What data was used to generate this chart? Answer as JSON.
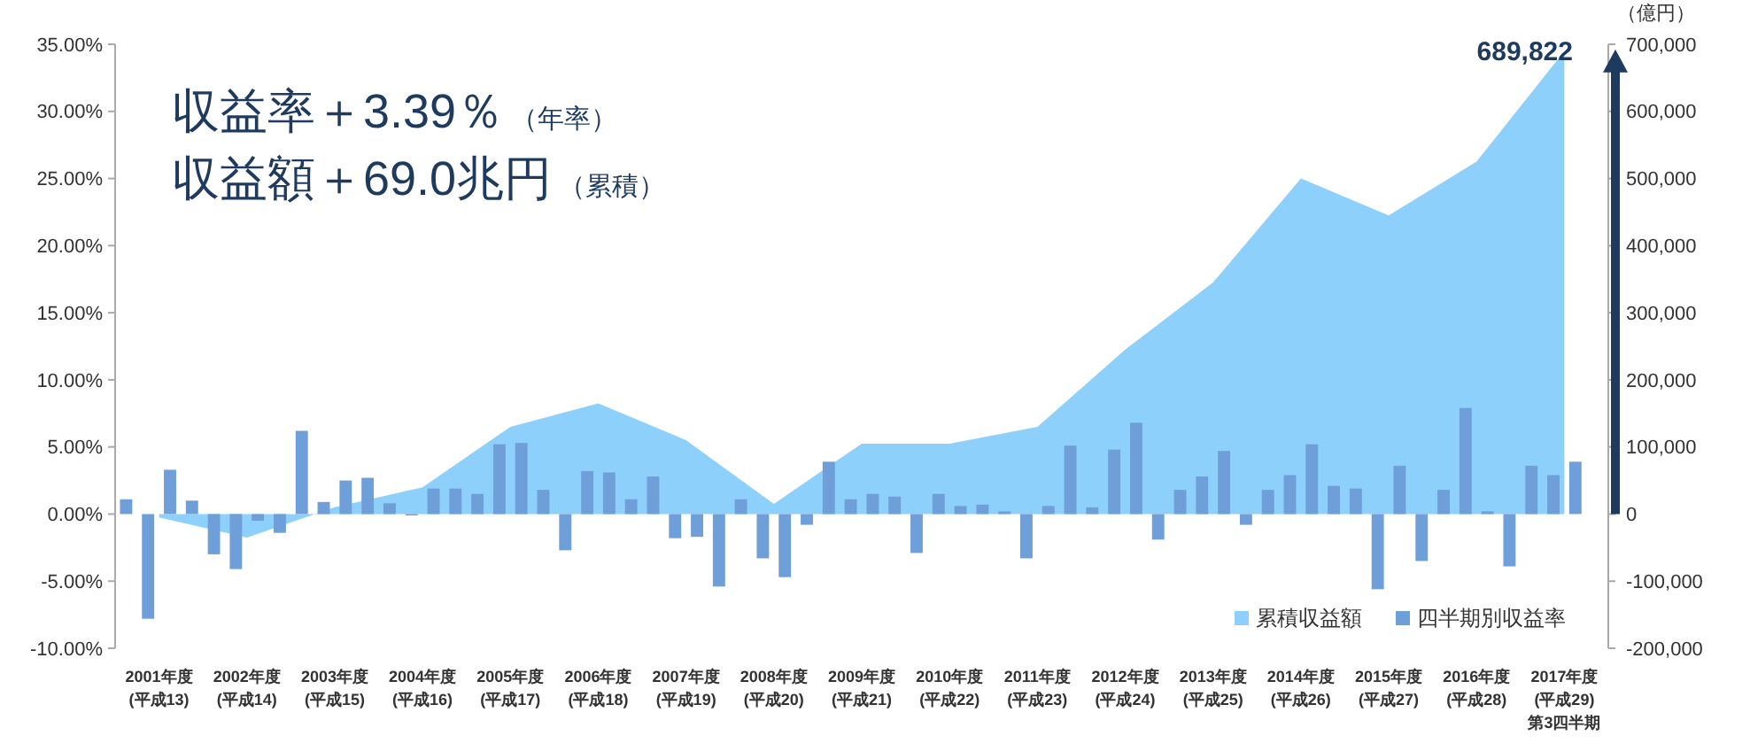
{
  "chart_data": {
    "type": "bar",
    "categories": [
      "2001年度\n(平成13)",
      "2002年度\n(平成14)",
      "2003年度\n(平成15)",
      "2004年度\n(平成16)",
      "2005年度\n(平成17)",
      "2006年度\n(平成18)",
      "2007年度\n(平成19)",
      "2008年度\n(平成20)",
      "2009年度\n(平成21)",
      "2010年度\n(平成22)",
      "2011年度\n(平成23)",
      "2012年度\n(平成24)",
      "2013年度\n(平成25)",
      "2014年度\n(平成26)",
      "2015年度\n(平成27)",
      "2016年度\n(平成28)",
      "2017年度\n(平成29)\n第3四半期"
    ],
    "series": [
      {
        "name": "累積収益額",
        "type": "area",
        "axis": "y2",
        "color": "#8dd0fb",
        "values": [
          -5000,
          -35000,
          10000,
          40000,
          130000,
          165000,
          110000,
          15000,
          105000,
          105000,
          130000,
          245000,
          345000,
          500000,
          445000,
          525000,
          689822
        ]
      },
      {
        "name": "四半期別収益率",
        "color": "#6f9fd9",
        "values": [
          1.1,
          -3.0,
          6.2,
          0.8,
          1.5,
          -2.7,
          2.8,
          1.1,
          3.9,
          -2.9,
          0.2,
          0.5,
          1.8,
          1.8,
          1.9,
          1.8,
          3.6
        ]
      },
      {
        "color": "#6f9fd9",
        "values": [
          -7.8,
          -4.1,
          0.9,
          -0.1,
          5.2,
          3.2,
          -1.8,
          -3.3,
          1.1,
          1.5,
          -3.3,
          4.8,
          2.8,
          2.9,
          -5.6,
          7.9,
          2.9
        ]
      },
      {
        "color": "#6f9fd9",
        "values": [
          3.3,
          -0.5,
          2.5,
          1.9,
          5.3,
          3.1,
          -1.7,
          -4.7,
          1.5,
          0.6,
          0.6,
          6.8,
          4.7,
          5.2,
          3.6,
          0.2,
          3.9
        ]
      },
      {
        "color": "#6f9fd9",
        "values": [
          1.0,
          -1.4,
          2.7,
          1.9,
          1.8,
          1.1,
          -5.4,
          -0.8,
          1.3,
          0.7,
          5.1,
          -1.9,
          -0.8,
          2.1,
          -3.5,
          -3.9,
          null
        ]
      }
    ],
    "ylim": [
      -10,
      35
    ],
    "yticks": [
      {
        "value": -10,
        "label": "-10.00%"
      },
      {
        "value": -5,
        "label": "-5.00%"
      },
      {
        "value": 0,
        "label": "0.00%"
      },
      {
        "value": 5,
        "label": "5.00%"
      },
      {
        "value": 10,
        "label": "10.00%"
      },
      {
        "value": 15,
        "label": "15.00%"
      },
      {
        "value": 20,
        "label": "20.00%"
      },
      {
        "value": 25,
        "label": "25.00%"
      },
      {
        "value": 30,
        "label": "30.00%"
      },
      {
        "value": 35,
        "label": "35.00%"
      }
    ],
    "y2lim": [
      -200000,
      700000
    ],
    "y2ticks": [
      {
        "value": -200000,
        "label": "-200,000"
      },
      {
        "value": -100000,
        "label": "-100,000"
      },
      {
        "value": 0,
        "label": "0"
      },
      {
        "value": 100000,
        "label": "100,000"
      },
      {
        "value": 200000,
        "label": "200,000"
      },
      {
        "value": 300000,
        "label": "300,000"
      },
      {
        "value": 400000,
        "label": "400,000"
      },
      {
        "value": 500000,
        "label": "500,000"
      },
      {
        "value": 600000,
        "label": "600,000"
      },
      {
        "value": 700000,
        "label": "700,000"
      }
    ],
    "y2label": "（億円）",
    "annotations": [
      "収益率＋3.39％",
      "（年率）",
      "収益額＋69.0兆円",
      "（累積）",
      "689,822"
    ],
    "legend": "bottom right",
    "grid": false
  }
}
